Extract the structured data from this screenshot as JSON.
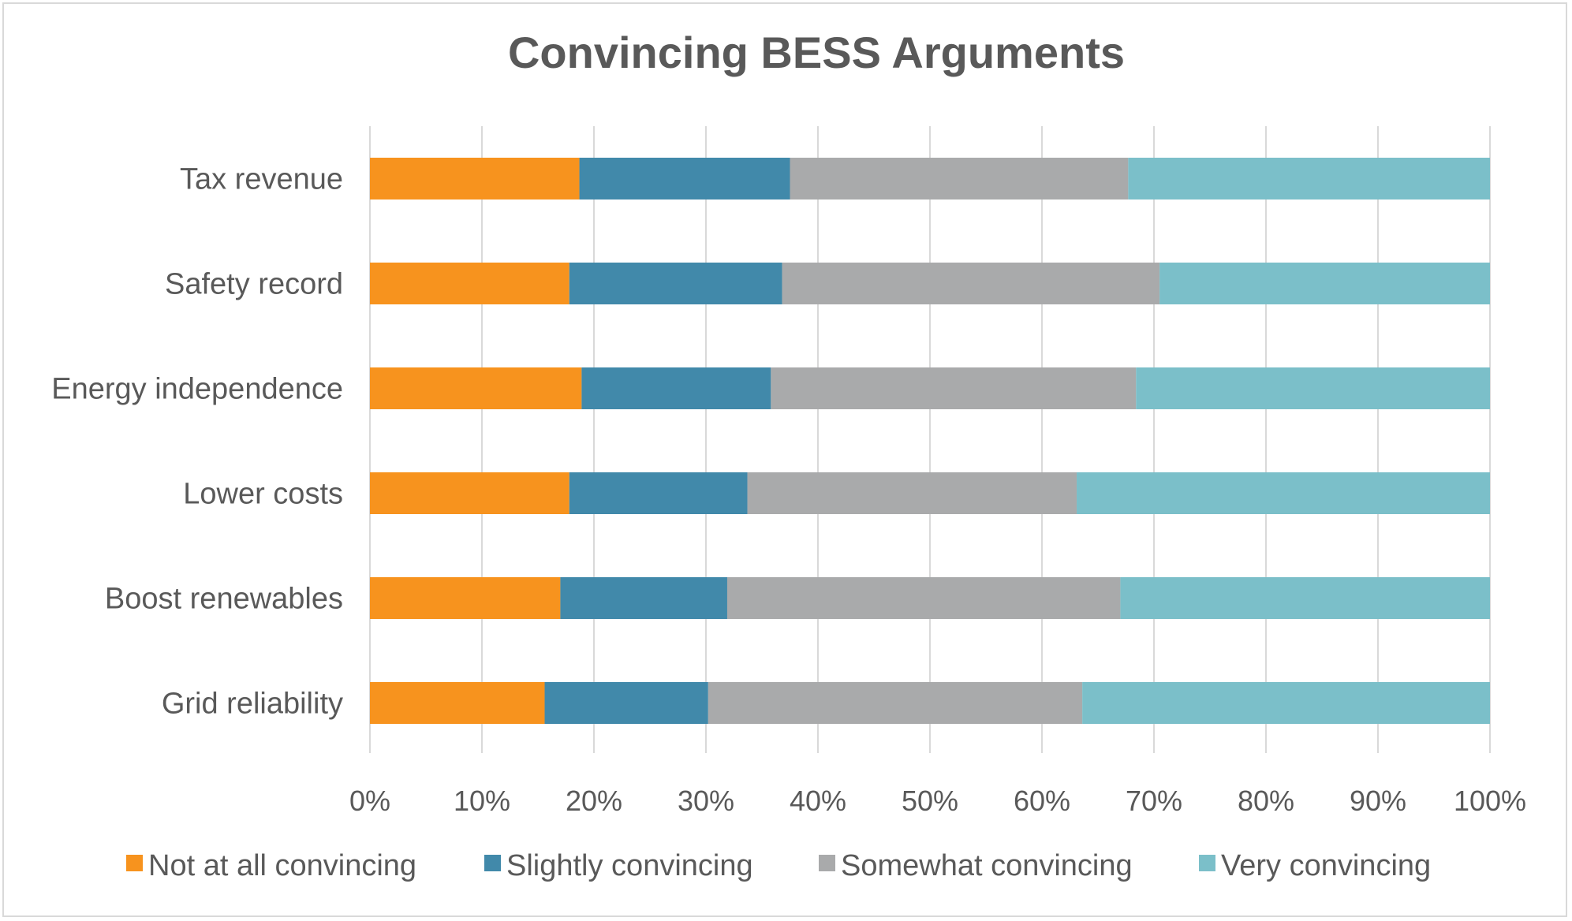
{
  "chart_data": {
    "type": "bar",
    "orientation": "horizontal",
    "stacked": "percent",
    "title": "Convincing BESS Arguments",
    "categories": [
      "Tax revenue",
      "Safety record",
      "Energy independence",
      "Lower costs",
      "Boost renewables",
      "Grid reliability"
    ],
    "series": [
      {
        "name": "Not at all convincing",
        "color": "#F7931E",
        "values": [
          18.7,
          17.8,
          18.9,
          17.8,
          17.0,
          15.6
        ]
      },
      {
        "name": "Slightly convincing",
        "color": "#4189AA",
        "values": [
          18.8,
          19.0,
          16.9,
          15.9,
          14.9,
          14.6
        ]
      },
      {
        "name": "Somewhat convincing",
        "color": "#A9AAAB",
        "values": [
          30.2,
          33.7,
          32.6,
          29.4,
          35.1,
          33.4
        ]
      },
      {
        "name": "Very convincing",
        "color": "#7BBFC9",
        "values": [
          32.3,
          29.5,
          31.6,
          36.9,
          33.0,
          36.4
        ]
      }
    ],
    "xlim": [
      0,
      100
    ],
    "xticks": [
      "0%",
      "10%",
      "20%",
      "30%",
      "40%",
      "50%",
      "60%",
      "70%",
      "80%",
      "90%",
      "100%"
    ],
    "xlabel": "",
    "ylabel": "",
    "grid": true,
    "legend_position": "bottom"
  }
}
